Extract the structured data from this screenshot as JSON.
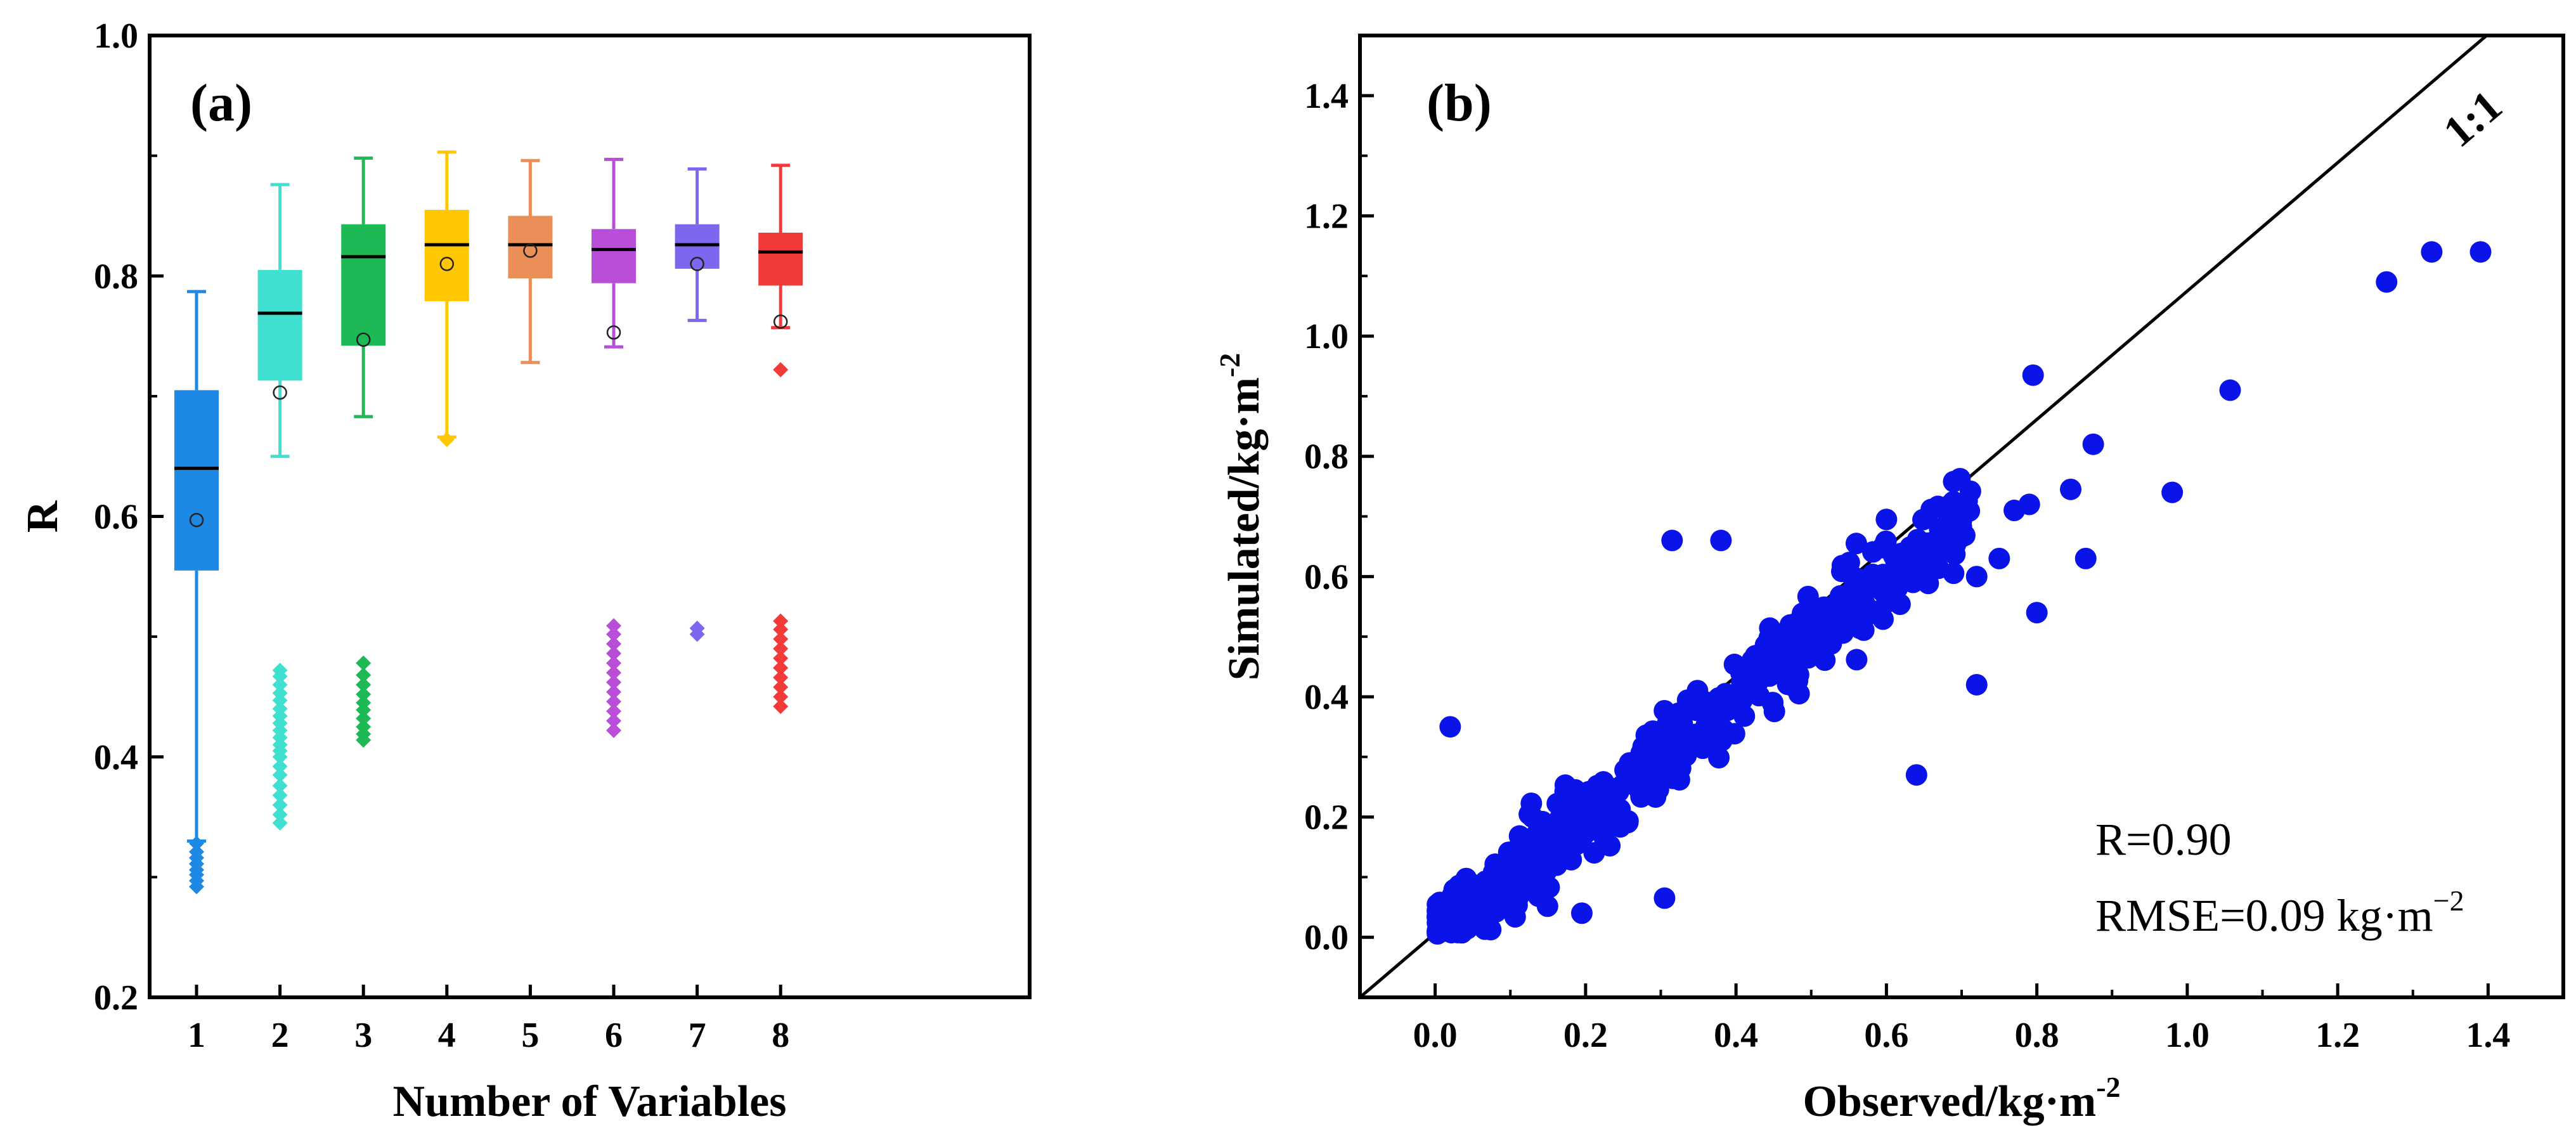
{
  "chart_data": [
    {
      "type": "box",
      "panel_label": "(a)",
      "xlabel": "Number of Variables",
      "ylabel": "R",
      "ylim": [
        0.2,
        1.0
      ],
      "yticks": [
        "0.2",
        "0.4",
        "0.6",
        "0.8",
        "1.0"
      ],
      "categories": [
        "1",
        "2",
        "3",
        "4",
        "5",
        "6",
        "7",
        "8"
      ],
      "boxes": [
        {
          "name": "1",
          "color": "#1E88E5",
          "whisker_low": 0.33,
          "q1": 0.555,
          "median": 0.64,
          "q3": 0.705,
          "whisker_high": 0.787,
          "mean": 0.597,
          "outliers": [
            0.292,
            0.297,
            0.302,
            0.306,
            0.311,
            0.316,
            0.321,
            0.328
          ]
        },
        {
          "name": "2",
          "color": "#40E0D0",
          "whisker_low": 0.65,
          "q1": 0.713,
          "median": 0.769,
          "q3": 0.805,
          "whisker_high": 0.876,
          "mean": 0.703,
          "outliers": [
            0.345,
            0.352,
            0.36,
            0.368,
            0.376,
            0.385,
            0.392,
            0.4,
            0.405,
            0.41,
            0.416,
            0.422,
            0.428,
            0.434,
            0.44,
            0.447,
            0.453,
            0.46,
            0.467,
            0.472
          ]
        },
        {
          "name": "3",
          "color": "#1DB954",
          "whisker_low": 0.683,
          "q1": 0.742,
          "median": 0.816,
          "q3": 0.843,
          "whisker_high": 0.898,
          "mean": 0.747,
          "outliers": [
            0.414,
            0.419,
            0.425,
            0.432,
            0.439,
            0.445,
            0.452,
            0.46,
            0.468,
            0.478
          ]
        },
        {
          "name": "4",
          "color": "#FFC700",
          "whisker_low": 0.666,
          "q1": 0.779,
          "median": 0.826,
          "q3": 0.855,
          "whisker_high": 0.903,
          "mean": 0.81,
          "outliers": [
            0.664
          ]
        },
        {
          "name": "5",
          "color": "#E98F57",
          "whisker_low": 0.728,
          "q1": 0.798,
          "median": 0.826,
          "q3": 0.85,
          "whisker_high": 0.896,
          "mean": 0.821,
          "outliers": []
        },
        {
          "name": "6",
          "color": "#B94FD8",
          "whisker_low": 0.741,
          "q1": 0.794,
          "median": 0.822,
          "q3": 0.839,
          "whisker_high": 0.897,
          "mean": 0.753,
          "outliers": [
            0.422,
            0.43,
            0.438,
            0.446,
            0.454,
            0.462,
            0.47,
            0.478,
            0.486,
            0.494,
            0.502,
            0.509
          ]
        },
        {
          "name": "7",
          "color": "#7B68EE",
          "whisker_low": 0.763,
          "q1": 0.806,
          "median": 0.826,
          "q3": 0.843,
          "whisker_high": 0.889,
          "mean": 0.81,
          "outliers": [
            0.502,
            0.507
          ]
        },
        {
          "name": "8",
          "color": "#F23A3A",
          "whisker_low": 0.757,
          "q1": 0.792,
          "median": 0.82,
          "q3": 0.836,
          "whisker_high": 0.892,
          "mean": 0.762,
          "outliers": [
            0.442,
            0.45,
            0.458,
            0.466,
            0.474,
            0.482,
            0.49,
            0.498,
            0.506,
            0.513,
            0.722
          ]
        }
      ]
    },
    {
      "type": "scatter",
      "panel_label": "(b)",
      "xlabel": "Observed/kg·m",
      "xlabel_sup": "-2",
      "ylabel": "Simulated/kg·m",
      "ylabel_sup": "-2",
      "xlim": [
        -0.1,
        1.5
      ],
      "ylim": [
        -0.1,
        1.5
      ],
      "xticks": [
        "0.0",
        "0.2",
        "0.4",
        "0.6",
        "0.8",
        "1.0",
        "1.2",
        "1.4"
      ],
      "yticks": [
        "0.0",
        "0.2",
        "0.4",
        "0.6",
        "0.8",
        "1.0",
        "1.2",
        "1.4"
      ],
      "point_color": "#0A14E8",
      "reference_line": "1:1",
      "annotations": {
        "r_text": "R=0.90",
        "rmse_text": "RMSE=0.09 kg·m",
        "rmse_sup": "−2"
      },
      "highlighted_points": [
        [
          1.39,
          1.14
        ],
        [
          1.325,
          1.14
        ],
        [
          1.265,
          1.09
        ],
        [
          1.057,
          0.91
        ],
        [
          0.98,
          0.74
        ],
        [
          0.795,
          0.935
        ],
        [
          0.875,
          0.82
        ],
        [
          0.845,
          0.745
        ],
        [
          0.865,
          0.63
        ],
        [
          0.8,
          0.54
        ],
        [
          0.77,
          0.71
        ],
        [
          0.79,
          0.72
        ],
        [
          0.75,
          0.63
        ],
        [
          0.72,
          0.42
        ],
        [
          0.64,
          0.27
        ],
        [
          0.315,
          0.66
        ],
        [
          0.38,
          0.66
        ],
        [
          0.305,
          0.065
        ],
        [
          0.195,
          0.04
        ],
        [
          0.02,
          0.35
        ],
        [
          0.6,
          0.695
        ],
        [
          0.565,
          0.595
        ],
        [
          0.68,
          0.65
        ],
        [
          0.72,
          0.6
        ],
        [
          0.56,
          0.655
        ]
      ],
      "bulk_cloud": {
        "count": 520,
        "x_range": [
          0.0,
          0.72
        ],
        "y_over_x_center": 1.0,
        "spread": 0.07,
        "seed": 7
      }
    }
  ]
}
